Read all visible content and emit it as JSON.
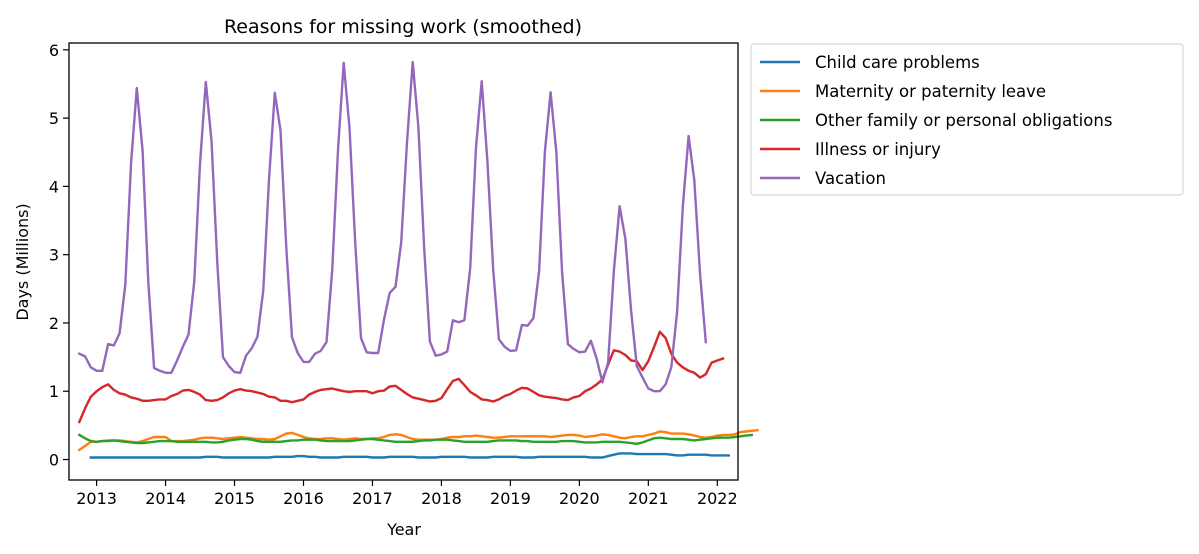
{
  "chart_data": {
    "type": "line",
    "title": "Reasons for missing work (smoothed)",
    "xlabel": "Year",
    "ylabel": "Days (Millions)",
    "xlim": [
      2012.6,
      2022.3
    ],
    "ylim": [
      -0.3,
      6.1
    ],
    "xticks": [
      2013,
      2014,
      2015,
      2016,
      2017,
      2018,
      2019,
      2020,
      2021,
      2022
    ],
    "yticks": [
      0,
      1,
      2,
      3,
      4,
      5,
      6
    ],
    "grid": false,
    "legend_position": "outside right, top",
    "x_start": 2012.75,
    "x_step": 0.08333333,
    "series": [
      {
        "name": "Child care problems",
        "color": "#1f77b4",
        "start_index": 2,
        "values": [
          0.03,
          0.03,
          0.03,
          0.03,
          0.03,
          0.03,
          0.03,
          0.03,
          0.03,
          0.03,
          0.03,
          0.03,
          0.03,
          0.03,
          0.03,
          0.03,
          0.03,
          0.03,
          0.03,
          0.03,
          0.04,
          0.04,
          0.04,
          0.03,
          0.03,
          0.03,
          0.03,
          0.03,
          0.03,
          0.03,
          0.03,
          0.03,
          0.04,
          0.04,
          0.04,
          0.04,
          0.05,
          0.05,
          0.04,
          0.04,
          0.03,
          0.03,
          0.03,
          0.03,
          0.04,
          0.04,
          0.04,
          0.04,
          0.04,
          0.03,
          0.03,
          0.03,
          0.04,
          0.04,
          0.04,
          0.04,
          0.04,
          0.03,
          0.03,
          0.03,
          0.03,
          0.04,
          0.04,
          0.04,
          0.04,
          0.04,
          0.03,
          0.03,
          0.03,
          0.03,
          0.04,
          0.04,
          0.04,
          0.04,
          0.04,
          0.03,
          0.03,
          0.03,
          0.04,
          0.04,
          0.04,
          0.04,
          0.04,
          0.04,
          0.04,
          0.04,
          0.04,
          0.03,
          0.03,
          0.03,
          0.05,
          0.07,
          0.09,
          0.09,
          0.09,
          0.08,
          0.08,
          0.08,
          0.08,
          0.08,
          0.08,
          0.07,
          0.06,
          0.06,
          0.07,
          0.07,
          0.07,
          0.07,
          0.06,
          0.06,
          0.06,
          0.06
        ]
      },
      {
        "name": "Maternity or paternity leave",
        "color": "#ff7f0e",
        "start_index": 0,
        "values": [
          0.14,
          0.2,
          0.26,
          0.26,
          0.27,
          0.28,
          0.28,
          0.28,
          0.27,
          0.26,
          0.25,
          0.27,
          0.3,
          0.33,
          0.33,
          0.33,
          0.27,
          0.27,
          0.27,
          0.28,
          0.29,
          0.31,
          0.32,
          0.32,
          0.31,
          0.3,
          0.31,
          0.32,
          0.33,
          0.32,
          0.31,
          0.3,
          0.3,
          0.29,
          0.3,
          0.34,
          0.38,
          0.39,
          0.36,
          0.33,
          0.31,
          0.3,
          0.3,
          0.31,
          0.31,
          0.3,
          0.29,
          0.3,
          0.31,
          0.3,
          0.3,
          0.31,
          0.31,
          0.33,
          0.36,
          0.37,
          0.36,
          0.33,
          0.3,
          0.29,
          0.29,
          0.29,
          0.29,
          0.3,
          0.32,
          0.33,
          0.33,
          0.34,
          0.34,
          0.35,
          0.34,
          0.33,
          0.32,
          0.32,
          0.33,
          0.34,
          0.34,
          0.34,
          0.34,
          0.34,
          0.34,
          0.34,
          0.33,
          0.34,
          0.35,
          0.36,
          0.36,
          0.35,
          0.33,
          0.34,
          0.35,
          0.37,
          0.36,
          0.34,
          0.32,
          0.31,
          0.33,
          0.34,
          0.34,
          0.36,
          0.38,
          0.41,
          0.4,
          0.38,
          0.38,
          0.38,
          0.37,
          0.35,
          0.33,
          0.32,
          0.33,
          0.35,
          0.36,
          0.36,
          0.37,
          0.4,
          0.41,
          0.42,
          0.43
        ]
      },
      {
        "name": "Other family or personal obligations",
        "color": "#2ca02c",
        "start_index": 0,
        "values": [
          0.36,
          0.31,
          0.27,
          0.26,
          0.27,
          0.27,
          0.28,
          0.27,
          0.26,
          0.25,
          0.24,
          0.24,
          0.25,
          0.26,
          0.27,
          0.27,
          0.27,
          0.26,
          0.26,
          0.26,
          0.26,
          0.26,
          0.26,
          0.25,
          0.25,
          0.26,
          0.28,
          0.29,
          0.3,
          0.3,
          0.29,
          0.27,
          0.26,
          0.26,
          0.26,
          0.26,
          0.27,
          0.28,
          0.28,
          0.29,
          0.29,
          0.29,
          0.28,
          0.27,
          0.27,
          0.27,
          0.27,
          0.27,
          0.28,
          0.29,
          0.3,
          0.3,
          0.29,
          0.28,
          0.27,
          0.26,
          0.26,
          0.26,
          0.26,
          0.27,
          0.28,
          0.28,
          0.29,
          0.29,
          0.29,
          0.28,
          0.27,
          0.26,
          0.26,
          0.26,
          0.26,
          0.26,
          0.27,
          0.28,
          0.28,
          0.28,
          0.28,
          0.27,
          0.27,
          0.26,
          0.26,
          0.26,
          0.26,
          0.26,
          0.27,
          0.27,
          0.27,
          0.26,
          0.25,
          0.25,
          0.25,
          0.26,
          0.26,
          0.26,
          0.26,
          0.25,
          0.24,
          0.23,
          0.25,
          0.28,
          0.31,
          0.32,
          0.31,
          0.3,
          0.3,
          0.3,
          0.29,
          0.28,
          0.29,
          0.3,
          0.31,
          0.32,
          0.32,
          0.32,
          0.33,
          0.34,
          0.35,
          0.36
        ]
      },
      {
        "name": "Illness or injury",
        "color": "#d62728",
        "start_index": 0,
        "values": [
          0.55,
          0.75,
          0.92,
          1.0,
          1.06,
          1.1,
          1.02,
          0.97,
          0.95,
          0.91,
          0.89,
          0.86,
          0.86,
          0.87,
          0.88,
          0.88,
          0.93,
          0.96,
          1.01,
          1.02,
          0.99,
          0.95,
          0.87,
          0.86,
          0.87,
          0.91,
          0.97,
          1.01,
          1.03,
          1.01,
          1.0,
          0.98,
          0.96,
          0.92,
          0.91,
          0.86,
          0.86,
          0.84,
          0.86,
          0.88,
          0.95,
          0.99,
          1.02,
          1.03,
          1.04,
          1.02,
          1.0,
          0.99,
          1.0,
          1.0,
          1.0,
          0.97,
          1.0,
          1.01,
          1.07,
          1.08,
          1.02,
          0.96,
          0.91,
          0.89,
          0.87,
          0.85,
          0.86,
          0.9,
          1.03,
          1.15,
          1.18,
          1.09,
          0.99,
          0.94,
          0.88,
          0.87,
          0.85,
          0.88,
          0.93,
          0.96,
          1.01,
          1.05,
          1.04,
          0.99,
          0.94,
          0.92,
          0.91,
          0.9,
          0.88,
          0.87,
          0.91,
          0.93,
          1.0,
          1.04,
          1.1,
          1.17,
          1.39,
          1.6,
          1.58,
          1.53,
          1.45,
          1.44,
          1.31,
          1.44,
          1.65,
          1.87,
          1.78,
          1.55,
          1.42,
          1.35,
          1.3,
          1.27,
          1.2,
          1.25,
          1.42,
          1.45,
          1.48
        ]
      },
      {
        "name": "Vacation",
        "color": "#9467bd",
        "start_index": 0,
        "values": [
          1.55,
          1.51,
          1.35,
          1.3,
          1.3,
          1.69,
          1.67,
          1.85,
          2.56,
          4.35,
          5.44,
          4.52,
          2.6,
          1.34,
          1.3,
          1.27,
          1.27,
          1.45,
          1.65,
          1.83,
          2.61,
          4.33,
          5.53,
          4.67,
          2.88,
          1.5,
          1.37,
          1.28,
          1.27,
          1.52,
          1.63,
          1.8,
          2.48,
          4.1,
          5.37,
          4.82,
          3.1,
          1.79,
          1.56,
          1.43,
          1.43,
          1.55,
          1.59,
          1.72,
          2.77,
          4.53,
          5.81,
          4.86,
          3.18,
          1.78,
          1.57,
          1.56,
          1.56,
          2.05,
          2.44,
          2.53,
          3.18,
          4.62,
          5.82,
          4.87,
          3.09,
          1.73,
          1.52,
          1.54,
          1.58,
          2.04,
          2.01,
          2.04,
          2.8,
          4.55,
          5.54,
          4.37,
          2.78,
          1.76,
          1.65,
          1.59,
          1.6,
          1.97,
          1.96,
          2.07,
          2.76,
          4.51,
          5.38,
          4.49,
          2.74,
          1.69,
          1.62,
          1.57,
          1.58,
          1.74,
          1.48,
          1.13,
          1.42,
          2.77,
          3.71,
          3.23,
          2.18,
          1.37,
          1.2,
          1.04,
          1.0,
          1.0,
          1.1,
          1.35,
          2.16,
          3.7,
          4.74,
          4.09,
          2.71,
          1.72
        ]
      }
    ]
  }
}
